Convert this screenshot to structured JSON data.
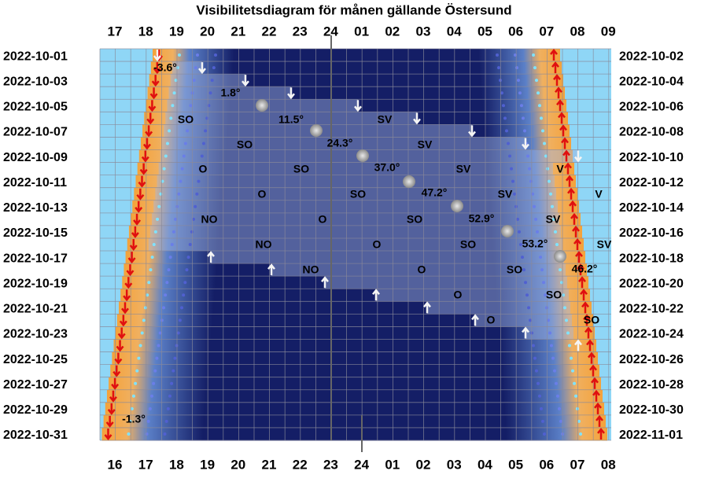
{
  "title": "Visibilitetsdiagram för månen gällande Östersund",
  "top_hours": [
    "17",
    "18",
    "19",
    "20",
    "21",
    "22",
    "23",
    "24",
    "01",
    "02",
    "03",
    "04",
    "05",
    "06",
    "07",
    "08",
    "09"
  ],
  "bottom_hours": [
    "16",
    "17",
    "18",
    "19",
    "20",
    "21",
    "22",
    "23",
    "24",
    "01",
    "02",
    "03",
    "04",
    "05",
    "06",
    "07",
    "08"
  ],
  "left_dates": [
    "2022-10-01",
    "2022-10-03",
    "2022-10-05",
    "2022-10-07",
    "2022-10-09",
    "2022-10-11",
    "2022-10-13",
    "2022-10-15",
    "2022-10-17",
    "2022-10-19",
    "2022-10-21",
    "2022-10-23",
    "2022-10-25",
    "2022-10-27",
    "2022-10-29",
    "2022-10-31"
  ],
  "right_dates": [
    "2022-10-02",
    "2022-10-04",
    "2022-10-06",
    "2022-10-08",
    "2022-10-10",
    "2022-10-12",
    "2022-10-14",
    "2022-10-16",
    "2022-10-18",
    "2022-10-20",
    "2022-10-22",
    "2022-10-24",
    "2022-10-26",
    "2022-10-28",
    "2022-10-30",
    "2022-11-01"
  ],
  "altitude_labels": [
    "-3.6°",
    "1.8°",
    "11.5°",
    "24.3°",
    "37.0°",
    "47.2°",
    "52.9°",
    "53.2°",
    "46.2°",
    "-1.3°"
  ],
  "direction_labels": [
    "SO",
    "SV",
    "SO",
    "SV",
    "O",
    "SO",
    "SV",
    "V",
    "O",
    "SO",
    "SV",
    "V",
    "NO",
    "O",
    "SO",
    "SV",
    "NO",
    "O",
    "SO",
    "SV",
    "NO",
    "O",
    "SO",
    "O",
    "SO",
    "O",
    "SO"
  ]
}
